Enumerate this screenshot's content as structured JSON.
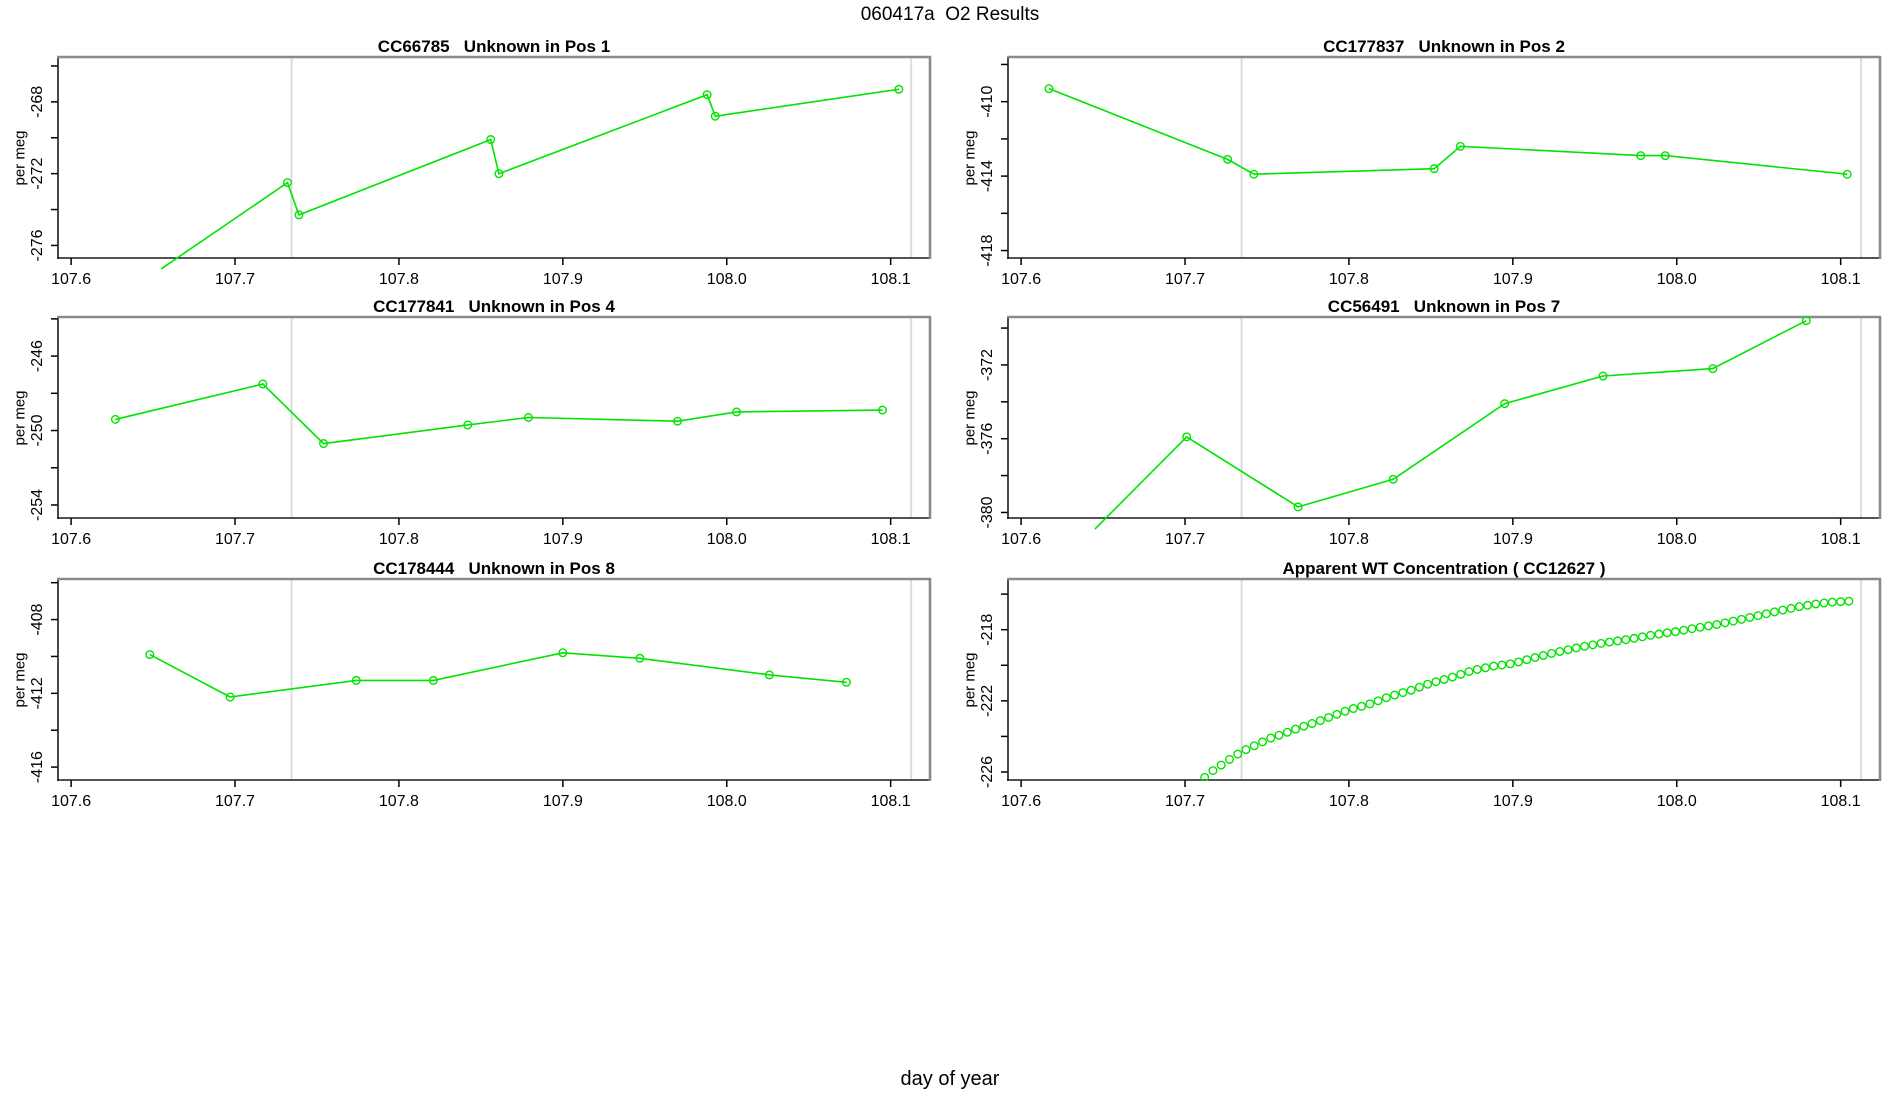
{
  "colors": {
    "series": "#00e400",
    "vline": "#dcdcdc",
    "box_dark": "#1a1a1a",
    "box_gray": "#8a8a8a",
    "text": "#000000"
  },
  "chart_data": {
    "type": "line",
    "layout": "2x3-panel-grid",
    "suptitle": "060417a  O2 Results",
    "xlabel": "day of year",
    "xlim": [
      107.592,
      108.124
    ],
    "xticks": [
      {
        "v": 107.6,
        "label": "107.6"
      },
      {
        "v": 107.7,
        "label": "107.7"
      },
      {
        "v": 107.8,
        "label": "107.8"
      },
      {
        "v": 107.9,
        "label": "107.9"
      },
      {
        "v": 108.0,
        "label": "108.0"
      },
      {
        "v": 108.1,
        "label": "108.1"
      }
    ],
    "vlines": [
      107.7345,
      108.1125
    ],
    "panels": [
      {
        "title": "CC66785   Unknown in Pos 1",
        "ylabel": "per meg",
        "style": "line-markers",
        "ylim": [
          -276.7,
          -265.5
        ],
        "yticks": [
          {
            "v": -266,
            "label": ""
          },
          {
            "v": -268,
            "label": "-268"
          },
          {
            "v": -270,
            "label": ""
          },
          {
            "v": -272,
            "label": "-272"
          },
          {
            "v": -274,
            "label": ""
          },
          {
            "v": -276,
            "label": "-276"
          }
        ],
        "leadin": [
          107.655,
          -277.3
        ],
        "points": [
          [
            107.732,
            -272.5
          ],
          [
            107.739,
            -274.3
          ],
          [
            107.856,
            -270.1
          ],
          [
            107.861,
            -272.0
          ],
          [
            107.988,
            -267.6
          ],
          [
            107.993,
            -268.8
          ],
          [
            108.105,
            -267.3
          ]
        ]
      },
      {
        "title": "CC177837   Unknown in Pos 2",
        "ylabel": "per meg",
        "style": "line-markers",
        "ylim": [
          -418.4,
          -407.6
        ],
        "yticks": [
          {
            "v": -408,
            "label": ""
          },
          {
            "v": -410,
            "label": "-410"
          },
          {
            "v": -412,
            "label": ""
          },
          {
            "v": -414,
            "label": "-414"
          },
          {
            "v": -416,
            "label": ""
          },
          {
            "v": -418,
            "label": "-418"
          }
        ],
        "points": [
          [
            107.617,
            -409.3
          ],
          [
            107.726,
            -413.1
          ],
          [
            107.742,
            -413.9
          ],
          [
            107.852,
            -413.6
          ],
          [
            107.868,
            -412.4
          ],
          [
            107.978,
            -412.9
          ],
          [
            107.993,
            -412.9
          ],
          [
            108.104,
            -413.9
          ]
        ]
      },
      {
        "title": "CC177841   Unknown in Pos 4",
        "ylabel": "per meg",
        "style": "line-markers",
        "ylim": [
          -254.7,
          -243.9
        ],
        "yticks": [
          {
            "v": -244,
            "label": ""
          },
          {
            "v": -246,
            "label": "-246"
          },
          {
            "v": -248,
            "label": ""
          },
          {
            "v": -250,
            "label": "-250"
          },
          {
            "v": -252,
            "label": ""
          },
          {
            "v": -254,
            "label": "-254"
          }
        ],
        "points": [
          [
            107.627,
            -249.4
          ],
          [
            107.717,
            -247.5
          ],
          [
            107.754,
            -250.7
          ],
          [
            107.842,
            -249.7
          ],
          [
            107.879,
            -249.3
          ],
          [
            107.97,
            -249.5
          ],
          [
            108.006,
            -249.0
          ],
          [
            108.095,
            -248.9
          ]
        ]
      },
      {
        "title": "CC56491   Unknown in Pos 7",
        "ylabel": "per meg",
        "style": "line-markers",
        "ylim": [
          -380.3,
          -369.4
        ],
        "yticks": [
          {
            "v": -370,
            "label": ""
          },
          {
            "v": -372,
            "label": "-372"
          },
          {
            "v": -374,
            "label": ""
          },
          {
            "v": -376,
            "label": "-376"
          },
          {
            "v": -378,
            "label": ""
          },
          {
            "v": -380,
            "label": "-380"
          }
        ],
        "leadin": [
          107.645,
          -380.9
        ],
        "points": [
          [
            107.701,
            -375.9
          ],
          [
            107.769,
            -379.7
          ],
          [
            107.827,
            -378.2
          ],
          [
            107.895,
            -374.1
          ],
          [
            107.955,
            -372.6
          ],
          [
            108.022,
            -372.2
          ],
          [
            108.079,
            -369.6
          ]
        ]
      },
      {
        "title": "CC178444   Unknown in Pos 8",
        "ylabel": "per meg",
        "style": "line-markers",
        "ylim": [
          -416.7,
          -405.8
        ],
        "yticks": [
          {
            "v": -406,
            "label": ""
          },
          {
            "v": -408,
            "label": "-408"
          },
          {
            "v": -410,
            "label": ""
          },
          {
            "v": -412,
            "label": "-412"
          },
          {
            "v": -414,
            "label": ""
          },
          {
            "v": -416,
            "label": "-416"
          }
        ],
        "points": [
          [
            107.648,
            -409.9
          ],
          [
            107.697,
            -412.2
          ],
          [
            107.774,
            -411.3
          ],
          [
            107.821,
            -411.3
          ],
          [
            107.9,
            -409.8
          ],
          [
            107.947,
            -410.1
          ],
          [
            108.026,
            -411.0
          ],
          [
            108.073,
            -411.4
          ]
        ]
      },
      {
        "title": "Apparent WT Concentration ( CC12627 )",
        "ylabel": "per meg",
        "style": "markers",
        "ylim": [
          -226.45,
          -215.15
        ],
        "yticks": [
          {
            "v": -216,
            "label": ""
          },
          {
            "v": -218,
            "label": "-218"
          },
          {
            "v": -220,
            "label": ""
          },
          {
            "v": -222,
            "label": "-222"
          },
          {
            "v": -224,
            "label": ""
          },
          {
            "v": -226,
            "label": "-226"
          }
        ],
        "curve": {
          "x_start": 107.712,
          "x_end": 108.105,
          "n": 79,
          "anchors": [
            [
              107.712,
              -226.3
            ],
            [
              107.718,
              -225.85
            ],
            [
              107.724,
              -225.5
            ],
            [
              107.73,
              -225.1
            ],
            [
              107.737,
              -224.75
            ],
            [
              107.744,
              -224.45
            ],
            [
              107.752,
              -224.1
            ],
            [
              107.76,
              -223.85
            ],
            [
              107.77,
              -223.5
            ],
            [
              107.78,
              -223.2
            ],
            [
              107.79,
              -222.85
            ],
            [
              107.8,
              -222.5
            ],
            [
              107.812,
              -222.2
            ],
            [
              107.825,
              -221.75
            ],
            [
              107.838,
              -221.4
            ],
            [
              107.85,
              -221.0
            ],
            [
              107.862,
              -220.7
            ],
            [
              107.875,
              -220.3
            ],
            [
              107.888,
              -220.05
            ],
            [
              107.9,
              -219.9
            ],
            [
              107.912,
              -219.6
            ],
            [
              107.925,
              -219.3
            ],
            [
              107.94,
              -219.0
            ],
            [
              107.955,
              -218.75
            ],
            [
              107.97,
              -218.55
            ],
            [
              107.985,
              -218.3
            ],
            [
              108.0,
              -218.1
            ],
            [
              108.012,
              -217.9
            ],
            [
              108.025,
              -217.7
            ],
            [
              108.038,
              -217.45
            ],
            [
              108.05,
              -217.2
            ],
            [
              108.062,
              -216.95
            ],
            [
              108.075,
              -216.7
            ],
            [
              108.085,
              -216.55
            ],
            [
              108.095,
              -216.45
            ],
            [
              108.105,
              -216.4
            ]
          ]
        }
      }
    ]
  }
}
